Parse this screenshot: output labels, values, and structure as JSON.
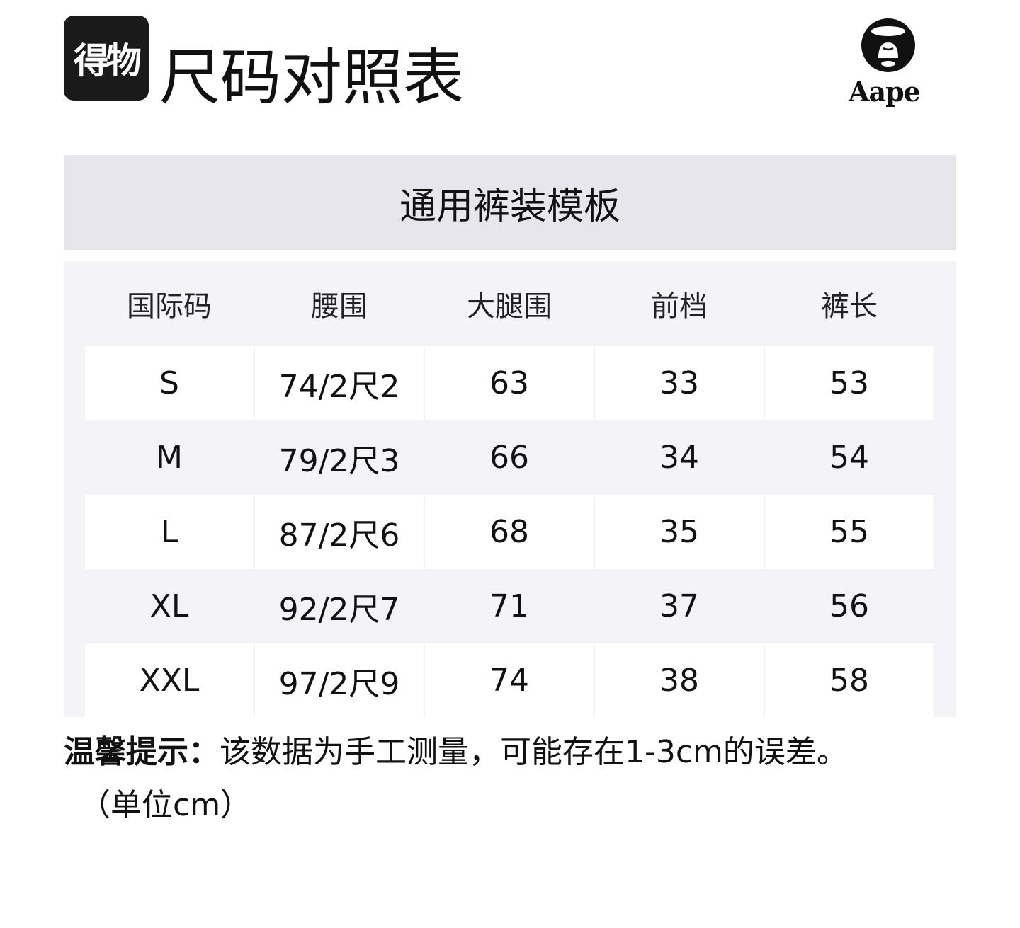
{
  "header": {
    "logo_text": "得物",
    "title": "尺码对照表",
    "brand": "Aape"
  },
  "template_title": "通用裤装模板",
  "table": {
    "columns": [
      "国际码",
      "腰围",
      "大腿围",
      "前档",
      "裤长"
    ],
    "rows": [
      [
        "S",
        "74/2尺2",
        "63",
        "33",
        "53"
      ],
      [
        "M",
        "79/2尺3",
        "66",
        "34",
        "54"
      ],
      [
        "L",
        "87/2尺6",
        "68",
        "35",
        "55"
      ],
      [
        "XL",
        "92/2尺7",
        "71",
        "37",
        "56"
      ],
      [
        "XXL",
        "97/2尺9",
        "74",
        "38",
        "58"
      ]
    ]
  },
  "note": {
    "label": "温馨提示：",
    "text": "该数据为手工测量，可能存在1-3cm的误差。",
    "unit": "（单位cm）"
  },
  "colors": {
    "title_bar": "#e6e6ec",
    "panel": "#f4f4f8"
  }
}
